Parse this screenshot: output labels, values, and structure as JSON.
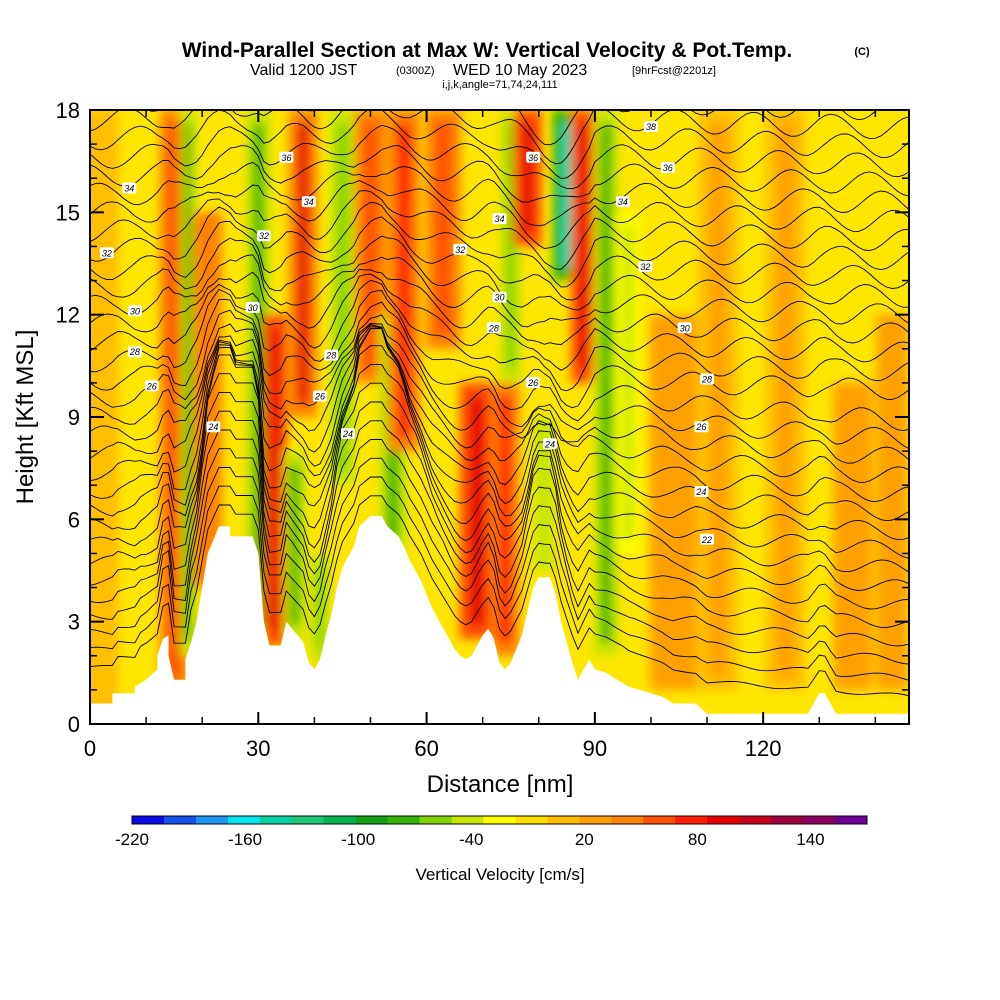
{
  "title": {
    "main": "Wind-Parallel Section at Max W: Vertical Velocity & Pot.Temp.",
    "main_suffix": "(C)",
    "valid_prefix": "Valid 1200 JST",
    "valid_utc": "(0300Z)",
    "valid_date": "WED 10 May 2023",
    "forecast": "[9hrFcst@2201z]",
    "indices": "i,j,k,angle=71,74,24,111"
  },
  "chart_data": {
    "type": "heatmap",
    "xlabel": "Distance [nm]",
    "ylabel": "Height [Kft MSL]",
    "xlim": [
      0,
      146
    ],
    "ylim": [
      0,
      18
    ],
    "x_ticks": [
      "0",
      "30",
      "60",
      "90",
      "120"
    ],
    "x_tick_values": [
      0,
      30,
      60,
      90,
      120
    ],
    "y_ticks": [
      "0",
      "3",
      "6",
      "9",
      "12",
      "15",
      "18"
    ],
    "y_tick_values": [
      0,
      3,
      6,
      9,
      12,
      15,
      18
    ],
    "grid": false,
    "terrain": [
      [
        0,
        0.6
      ],
      [
        4,
        0.6
      ],
      [
        4,
        0.9
      ],
      [
        8,
        0.9
      ],
      [
        8,
        1.1
      ],
      [
        10,
        1.3
      ],
      [
        12,
        1.6
      ],
      [
        12,
        2.0
      ],
      [
        13,
        2.5
      ],
      [
        14,
        2.6
      ],
      [
        14,
        2.0
      ],
      [
        15,
        1.3
      ],
      [
        17,
        1.3
      ],
      [
        17,
        1.9
      ],
      [
        18,
        2.4
      ],
      [
        19,
        3.0
      ],
      [
        20,
        4.0
      ],
      [
        21,
        5.0
      ],
      [
        22,
        5.4
      ],
      [
        23,
        5.8
      ],
      [
        25,
        5.8
      ],
      [
        25,
        5.5
      ],
      [
        29,
        5.5
      ],
      [
        30,
        5.0
      ],
      [
        31,
        3.0
      ],
      [
        32,
        2.3
      ],
      [
        34,
        2.3
      ],
      [
        35,
        3.0
      ],
      [
        36,
        2.8
      ],
      [
        38,
        2.4
      ],
      [
        39,
        1.8
      ],
      [
        40,
        1.6
      ],
      [
        41,
        1.9
      ],
      [
        42,
        2.6
      ],
      [
        43,
        3.2
      ],
      [
        44,
        4.0
      ],
      [
        45,
        4.6
      ],
      [
        47,
        5.2
      ],
      [
        48,
        5.8
      ],
      [
        50,
        6.1
      ],
      [
        52,
        6.1
      ],
      [
        53,
        5.8
      ],
      [
        55,
        5.5
      ],
      [
        56,
        5.2
      ],
      [
        57,
        4.8
      ],
      [
        58,
        4.5
      ],
      [
        59,
        4.2
      ],
      [
        60,
        3.8
      ],
      [
        61,
        3.4
      ],
      [
        62,
        3.1
      ],
      [
        63,
        2.8
      ],
      [
        64,
        2.5
      ],
      [
        65,
        2.2
      ],
      [
        66,
        2.0
      ],
      [
        67,
        1.9
      ],
      [
        68,
        2.0
      ],
      [
        69,
        2.3
      ],
      [
        70,
        2.6
      ],
      [
        71,
        2.8
      ],
      [
        72,
        2.5
      ],
      [
        73,
        1.8
      ],
      [
        74,
        1.6
      ],
      [
        75,
        1.8
      ],
      [
        76,
        2.2
      ],
      [
        77,
        2.6
      ],
      [
        78,
        3.3
      ],
      [
        79,
        4.0
      ],
      [
        80,
        4.3
      ],
      [
        82,
        4.3
      ],
      [
        83,
        3.8
      ],
      [
        84,
        3.0
      ],
      [
        85,
        2.4
      ],
      [
        86,
        1.8
      ],
      [
        87,
        1.3
      ],
      [
        88,
        1.6
      ],
      [
        89,
        1.9
      ],
      [
        90,
        1.6
      ],
      [
        92,
        1.5
      ],
      [
        94,
        1.3
      ],
      [
        96,
        1.1
      ],
      [
        98,
        1.0
      ],
      [
        100,
        0.9
      ],
      [
        102,
        0.8
      ],
      [
        104,
        0.6
      ],
      [
        108,
        0.6
      ],
      [
        110,
        0.3
      ],
      [
        128,
        0.3
      ],
      [
        129,
        0.6
      ],
      [
        130,
        0.9
      ],
      [
        131,
        0.9
      ],
      [
        132,
        0.6
      ],
      [
        133,
        0.3
      ],
      [
        146,
        0.3
      ]
    ],
    "updrafts": [
      {
        "x": 2,
        "y0": 0,
        "y1": 18,
        "w": 2.2,
        "v": 15
      },
      {
        "x": 15,
        "y0": 1,
        "y1": 18,
        "w": 1.8,
        "v": 60
      },
      {
        "x": 17.5,
        "y0": 2,
        "y1": 18,
        "w": 1.0,
        "v": -70
      },
      {
        "x": 21,
        "y0": 4,
        "y1": 15,
        "w": 1.8,
        "v": 50
      },
      {
        "x": 30,
        "y0": 2.5,
        "y1": 18,
        "w": 1.6,
        "v": -80
      },
      {
        "x": 33,
        "y0": 2.3,
        "y1": 12,
        "w": 1.5,
        "v": 95
      },
      {
        "x": 36.5,
        "y0": 2.5,
        "y1": 8,
        "w": 1.4,
        "v": -70
      },
      {
        "x": 38,
        "y0": 9,
        "y1": 18,
        "w": 1.8,
        "v": 90
      },
      {
        "x": 41,
        "y0": 1.8,
        "y1": 5,
        "w": 1.2,
        "v": -60
      },
      {
        "x": 45,
        "y0": 7,
        "y1": 18,
        "w": 1.6,
        "v": -60
      },
      {
        "x": 50,
        "y0": 10,
        "y1": 18,
        "w": 2.0,
        "v": 60
      },
      {
        "x": 54,
        "y0": 5,
        "y1": 12,
        "w": 1.8,
        "v": -80
      },
      {
        "x": 56,
        "y0": 8,
        "y1": 18,
        "w": 2.0,
        "v": 70
      },
      {
        "x": 63,
        "y0": 11,
        "y1": 18,
        "w": 2.2,
        "v": 55
      },
      {
        "x": 69,
        "y0": 2.5,
        "y1": 10,
        "w": 2.2,
        "v": 100
      },
      {
        "x": 74,
        "y0": 2,
        "y1": 10,
        "w": 1.8,
        "v": 85
      },
      {
        "x": 75,
        "y0": 10,
        "y1": 18,
        "w": 1.3,
        "v": -60
      },
      {
        "x": 78,
        "y0": 14,
        "y1": 18,
        "w": 1.8,
        "v": 100
      },
      {
        "x": 81,
        "y0": 4.5,
        "y1": 9,
        "w": 1.3,
        "v": -50
      },
      {
        "x": 85,
        "y0": 13,
        "y1": 18,
        "w": 1.8,
        "v": -150
      },
      {
        "x": 88,
        "y0": 10,
        "y1": 18,
        "w": 1.6,
        "v": 95
      },
      {
        "x": 92,
        "y0": 2,
        "y1": 18,
        "w": 1.6,
        "v": -70
      },
      {
        "x": 96,
        "y0": 5,
        "y1": 15,
        "w": 1.5,
        "v": -40
      },
      {
        "x": 104,
        "y0": 1,
        "y1": 12,
        "w": 3.0,
        "v": 25
      },
      {
        "x": 112,
        "y0": 1,
        "y1": 18,
        "w": 2.5,
        "v": 20
      },
      {
        "x": 124,
        "y0": 1,
        "y1": 18,
        "w": 2.5,
        "v": 20
      },
      {
        "x": 136,
        "y0": 1,
        "y1": 10,
        "w": 2.5,
        "v": 30
      },
      {
        "x": 143,
        "y0": 1,
        "y1": 12,
        "w": 2.0,
        "v": 30
      }
    ],
    "contour_labels": [
      {
        "x": 7,
        "y": 15.7,
        "text": "34"
      },
      {
        "x": 3,
        "y": 13.8,
        "text": "32"
      },
      {
        "x": 8,
        "y": 12.1,
        "text": "30"
      },
      {
        "x": 8,
        "y": 10.9,
        "text": "28"
      },
      {
        "x": 11,
        "y": 9.9,
        "text": "26"
      },
      {
        "x": 22,
        "y": 8.7,
        "text": "24"
      },
      {
        "x": 35,
        "y": 16.6,
        "text": "36"
      },
      {
        "x": 39,
        "y": 15.3,
        "text": "34"
      },
      {
        "x": 31,
        "y": 14.3,
        "text": "32"
      },
      {
        "x": 29,
        "y": 12.2,
        "text": "30"
      },
      {
        "x": 43,
        "y": 10.8,
        "text": "28"
      },
      {
        "x": 41,
        "y": 9.6,
        "text": "26"
      },
      {
        "x": 46,
        "y": 8.5,
        "text": "24"
      },
      {
        "x": 66,
        "y": 13.9,
        "text": "32"
      },
      {
        "x": 73,
        "y": 12.5,
        "text": "30"
      },
      {
        "x": 72,
        "y": 11.6,
        "text": "28"
      },
      {
        "x": 79,
        "y": 10.0,
        "text": "26"
      },
      {
        "x": 82,
        "y": 8.2,
        "text": "24"
      },
      {
        "x": 73,
        "y": 14.8,
        "text": "34"
      },
      {
        "x": 79,
        "y": 16.6,
        "text": "36"
      },
      {
        "x": 100,
        "y": 17.5,
        "text": "38"
      },
      {
        "x": 103,
        "y": 16.3,
        "text": "36"
      },
      {
        "x": 95,
        "y": 15.3,
        "text": "34"
      },
      {
        "x": 99,
        "y": 13.4,
        "text": "32"
      },
      {
        "x": 106,
        "y": 11.6,
        "text": "30"
      },
      {
        "x": 110,
        "y": 10.1,
        "text": "28"
      },
      {
        "x": 109,
        "y": 8.7,
        "text": "26"
      },
      {
        "x": 109,
        "y": 6.8,
        "text": "24"
      },
      {
        "x": 110,
        "y": 5.4,
        "text": "22"
      }
    ]
  },
  "colorbar": {
    "title": "Vertical Velocity [cm/s]",
    "labels": [
      "-220",
      "-160",
      "-100",
      "-40",
      "20",
      "80",
      "140"
    ],
    "label_values": [
      -220,
      -160,
      -100,
      -40,
      20,
      80,
      140
    ],
    "min": -220,
    "max": 170,
    "colors": [
      "#0a0ae6",
      "#1450f0",
      "#1e96f0",
      "#00e6f0",
      "#00d2aa",
      "#1ec878",
      "#00b450",
      "#14a014",
      "#32b400",
      "#82d200",
      "#c8e600",
      "#ffff00",
      "#ffdc00",
      "#ffbe00",
      "#ffa000",
      "#ff8200",
      "#ff5000",
      "#ff1e00",
      "#e60000",
      "#c8001e",
      "#a0003c",
      "#8c0064",
      "#6e0096"
    ]
  }
}
